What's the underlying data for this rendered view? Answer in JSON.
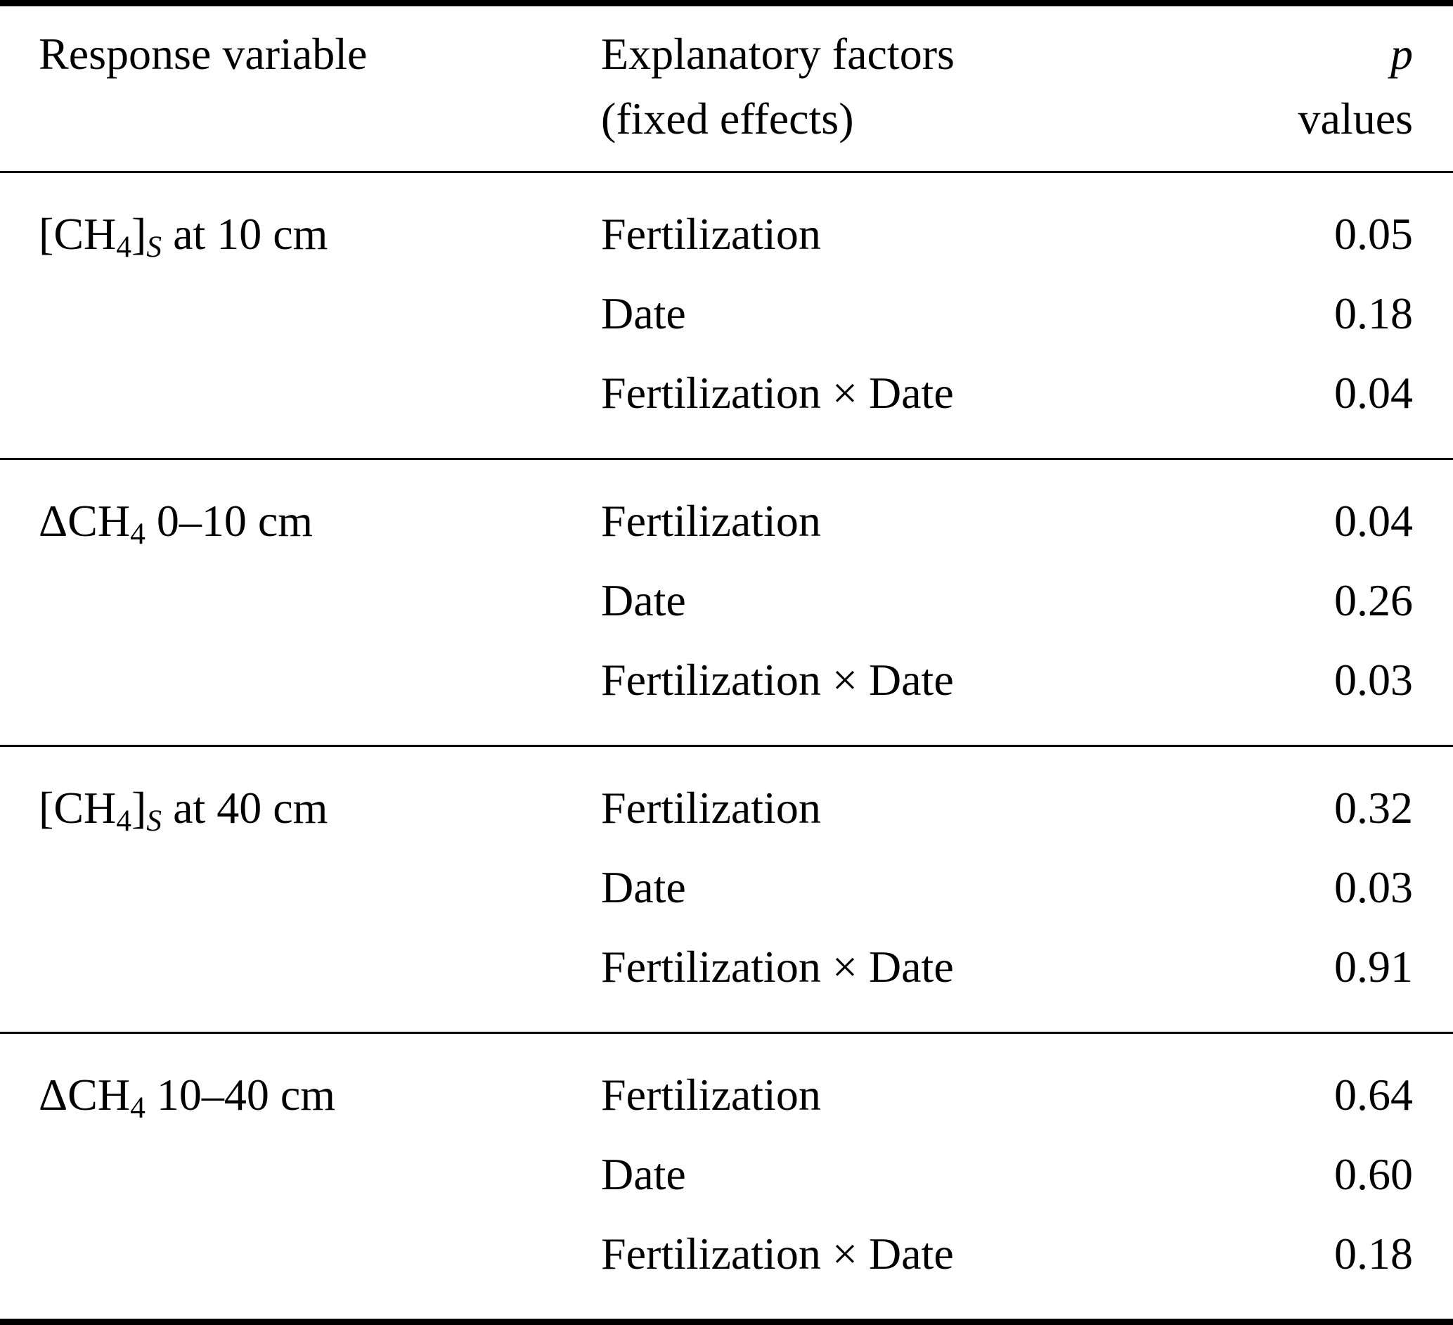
{
  "table": {
    "header": {
      "response_variable": "Response variable",
      "explanatory_line1": "Explanatory factors",
      "explanatory_line2": "(fixed effects)",
      "p_symbol": "p",
      "p_values_word": "values"
    },
    "groups": [
      {
        "response": {
          "open": "[CH",
          "sub4": "4",
          "close": "]",
          "subS": "S",
          "rest": " at 10 cm"
        },
        "rows": [
          {
            "factor": "Fertilization",
            "p": "0.05"
          },
          {
            "factor": "Date",
            "p": "0.18"
          },
          {
            "factor": "Fertilization × Date",
            "p": "0.04"
          }
        ]
      },
      {
        "response": {
          "open": "ΔCH",
          "sub4": "4",
          "close": "",
          "subS": "",
          "rest": " 0–10 cm"
        },
        "rows": [
          {
            "factor": "Fertilization",
            "p": "0.04"
          },
          {
            "factor": "Date",
            "p": "0.26"
          },
          {
            "factor": "Fertilization × Date",
            "p": "0.03"
          }
        ]
      },
      {
        "response": {
          "open": "[CH",
          "sub4": "4",
          "close": "]",
          "subS": "S",
          "rest": " at 40 cm"
        },
        "rows": [
          {
            "factor": "Fertilization",
            "p": "0.32"
          },
          {
            "factor": "Date",
            "p": "0.03"
          },
          {
            "factor": "Fertilization × Date",
            "p": "0.91"
          }
        ]
      },
      {
        "response": {
          "open": "ΔCH",
          "sub4": "4",
          "close": "",
          "subS": "",
          "rest": " 10–40 cm"
        },
        "rows": [
          {
            "factor": "Fertilization",
            "p": "0.64"
          },
          {
            "factor": "Date",
            "p": "0.60"
          },
          {
            "factor": "Fertilization × Date",
            "p": "0.18"
          }
        ]
      }
    ]
  },
  "chart_data": {
    "type": "table",
    "title": "",
    "columns": [
      "Response variable",
      "Explanatory factors (fixed effects)",
      "p values"
    ],
    "rows": [
      [
        "[CH4]S at 10 cm",
        "Fertilization",
        0.05
      ],
      [
        "[CH4]S at 10 cm",
        "Date",
        0.18
      ],
      [
        "[CH4]S at 10 cm",
        "Fertilization × Date",
        0.04
      ],
      [
        "ΔCH4 0–10 cm",
        "Fertilization",
        0.04
      ],
      [
        "ΔCH4 0–10 cm",
        "Date",
        0.26
      ],
      [
        "ΔCH4 0–10 cm",
        "Fertilization × Date",
        0.03
      ],
      [
        "[CH4]S at 40 cm",
        "Fertilization",
        0.32
      ],
      [
        "[CH4]S at 40 cm",
        "Date",
        0.03
      ],
      [
        "[CH4]S at 40 cm",
        "Fertilization × Date",
        0.91
      ],
      [
        "ΔCH4 10–40 cm",
        "Fertilization",
        0.64
      ],
      [
        "ΔCH4 10–40 cm",
        "Date",
        0.6
      ],
      [
        "ΔCH4 10–40 cm",
        "Fertilization × Date",
        0.18
      ]
    ]
  }
}
